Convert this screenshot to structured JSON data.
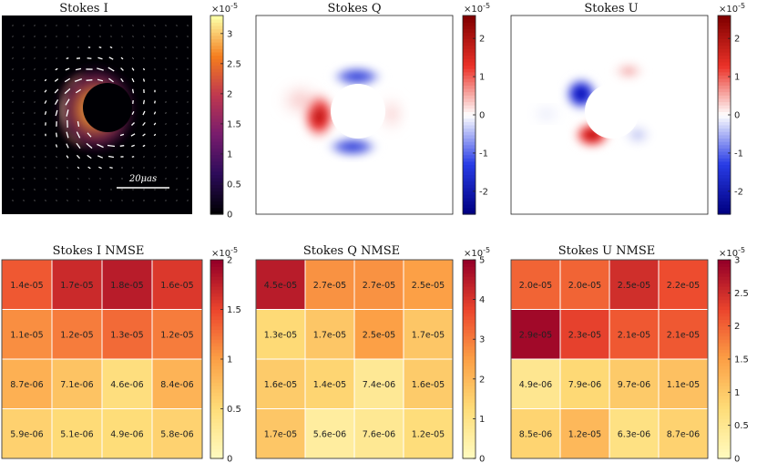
{
  "chart_data": [
    {
      "type": "heatmap",
      "title": "Stokes I",
      "colormap": "inferno",
      "colorbar": {
        "ticks": [
          0,
          0.5,
          1,
          1.5,
          2,
          2.5,
          3
        ],
        "tick_labels": [
          "0",
          "0.5",
          "1",
          "1.5",
          "2",
          "2.5",
          "3"
        ],
        "exponent_label": "×10",
        "exponent": "-5",
        "range": [
          0,
          3.3
        ]
      },
      "scale_bar_label": "20μas",
      "polarization_ticks": true,
      "grid": false
    },
    {
      "type": "heatmap",
      "title": "Stokes Q",
      "colormap": "diverging-blue-white-red",
      "colorbar": {
        "ticks": [
          -2,
          -1,
          0,
          1,
          2
        ],
        "tick_labels": [
          "-2",
          "-1",
          "0",
          "1",
          "2"
        ],
        "exponent_label": "×10",
        "exponent": "-5",
        "range": [
          -2.6,
          2.6
        ]
      },
      "grid": false
    },
    {
      "type": "heatmap",
      "title": "Stokes U",
      "colormap": "diverging-blue-white-red",
      "colorbar": {
        "ticks": [
          -2,
          -1,
          0,
          1,
          2
        ],
        "tick_labels": [
          "-2",
          "-1",
          "0",
          "1",
          "2"
        ],
        "exponent_label": "×10",
        "exponent": "-5",
        "range": [
          -2.6,
          2.6
        ]
      },
      "grid": false
    },
    {
      "type": "heatmap",
      "title": "Stokes I NMSE",
      "colormap": "YlOrRd",
      "values": [
        [
          1.4e-05,
          1.7e-05,
          1.8e-05,
          1.6e-05
        ],
        [
          1.1e-05,
          1.2e-05,
          1.3e-05,
          1.2e-05
        ],
        [
          8.7e-06,
          7.1e-06,
          4.6e-06,
          8.4e-06
        ],
        [
          5.9e-06,
          5.1e-06,
          4.9e-06,
          5.8e-06
        ]
      ],
      "labels": [
        [
          "1.4e-05",
          "1.7e-05",
          "1.8e-05",
          "1.6e-05"
        ],
        [
          "1.1e-05",
          "1.2e-05",
          "1.3e-05",
          "1.2e-05"
        ],
        [
          "8.7e-06",
          "7.1e-06",
          "4.6e-06",
          "8.4e-06"
        ],
        [
          "5.9e-06",
          "5.1e-06",
          "4.9e-06",
          "5.8e-06"
        ]
      ],
      "colorbar": {
        "ticks": [
          0,
          0.5,
          1,
          1.5,
          2
        ],
        "tick_labels": [
          "0",
          "0.5",
          "1",
          "1.5",
          "2"
        ],
        "exponent_label": "×10",
        "exponent": "-5",
        "range": [
          0,
          2
        ]
      }
    },
    {
      "type": "heatmap",
      "title": "Stokes Q NMSE",
      "colormap": "YlOrRd",
      "values": [
        [
          4.5e-05,
          2.7e-05,
          2.7e-05,
          2.5e-05
        ],
        [
          1.3e-05,
          1.7e-05,
          2.5e-05,
          1.7e-05
        ],
        [
          1.6e-05,
          1.4e-05,
          7.4e-06,
          1.6e-05
        ],
        [
          1.7e-05,
          5.6e-06,
          7.6e-06,
          1.2e-05
        ]
      ],
      "labels": [
        [
          "4.5e-05",
          "2.7e-05",
          "2.7e-05",
          "2.5e-05"
        ],
        [
          "1.3e-05",
          "1.7e-05",
          "2.5e-05",
          "1.7e-05"
        ],
        [
          "1.6e-05",
          "1.4e-05",
          "7.4e-06",
          "1.6e-05"
        ],
        [
          "1.7e-05",
          "5.6e-06",
          "7.6e-06",
          "1.2e-05"
        ]
      ],
      "colorbar": {
        "ticks": [
          0,
          1,
          2,
          3,
          4,
          5
        ],
        "tick_labels": [
          "0",
          "1",
          "2",
          "3",
          "4",
          "5"
        ],
        "exponent_label": "×10",
        "exponent": "-5",
        "range": [
          0,
          5
        ]
      }
    },
    {
      "type": "heatmap",
      "title": "Stokes U NMSE",
      "colormap": "YlOrRd",
      "values": [
        [
          2e-05,
          2e-05,
          2.5e-05,
          2.2e-05
        ],
        [
          2.9e-05,
          2.3e-05,
          2.1e-05,
          2.1e-05
        ],
        [
          4.9e-06,
          7.9e-06,
          9.7e-06,
          1.1e-05
        ],
        [
          8.5e-06,
          1.2e-05,
          6.3e-06,
          8.7e-06
        ]
      ],
      "labels": [
        [
          "2.0e-05",
          "2.0e-05",
          "2.5e-05",
          "2.2e-05"
        ],
        [
          "2.9e-05",
          "2.3e-05",
          "2.1e-05",
          "2.1e-05"
        ],
        [
          "4.9e-06",
          "7.9e-06",
          "9.7e-06",
          "1.1e-05"
        ],
        [
          "8.5e-06",
          "1.2e-05",
          "6.3e-06",
          "8.7e-06"
        ]
      ],
      "colorbar": {
        "ticks": [
          0,
          0.5,
          1,
          1.5,
          2,
          2.5,
          3
        ],
        "tick_labels": [
          "0",
          "0.5",
          "1",
          "1.5",
          "2",
          "2.5",
          "3"
        ],
        "exponent_label": "×10",
        "exponent": "-5",
        "range": [
          0,
          3
        ]
      }
    }
  ]
}
